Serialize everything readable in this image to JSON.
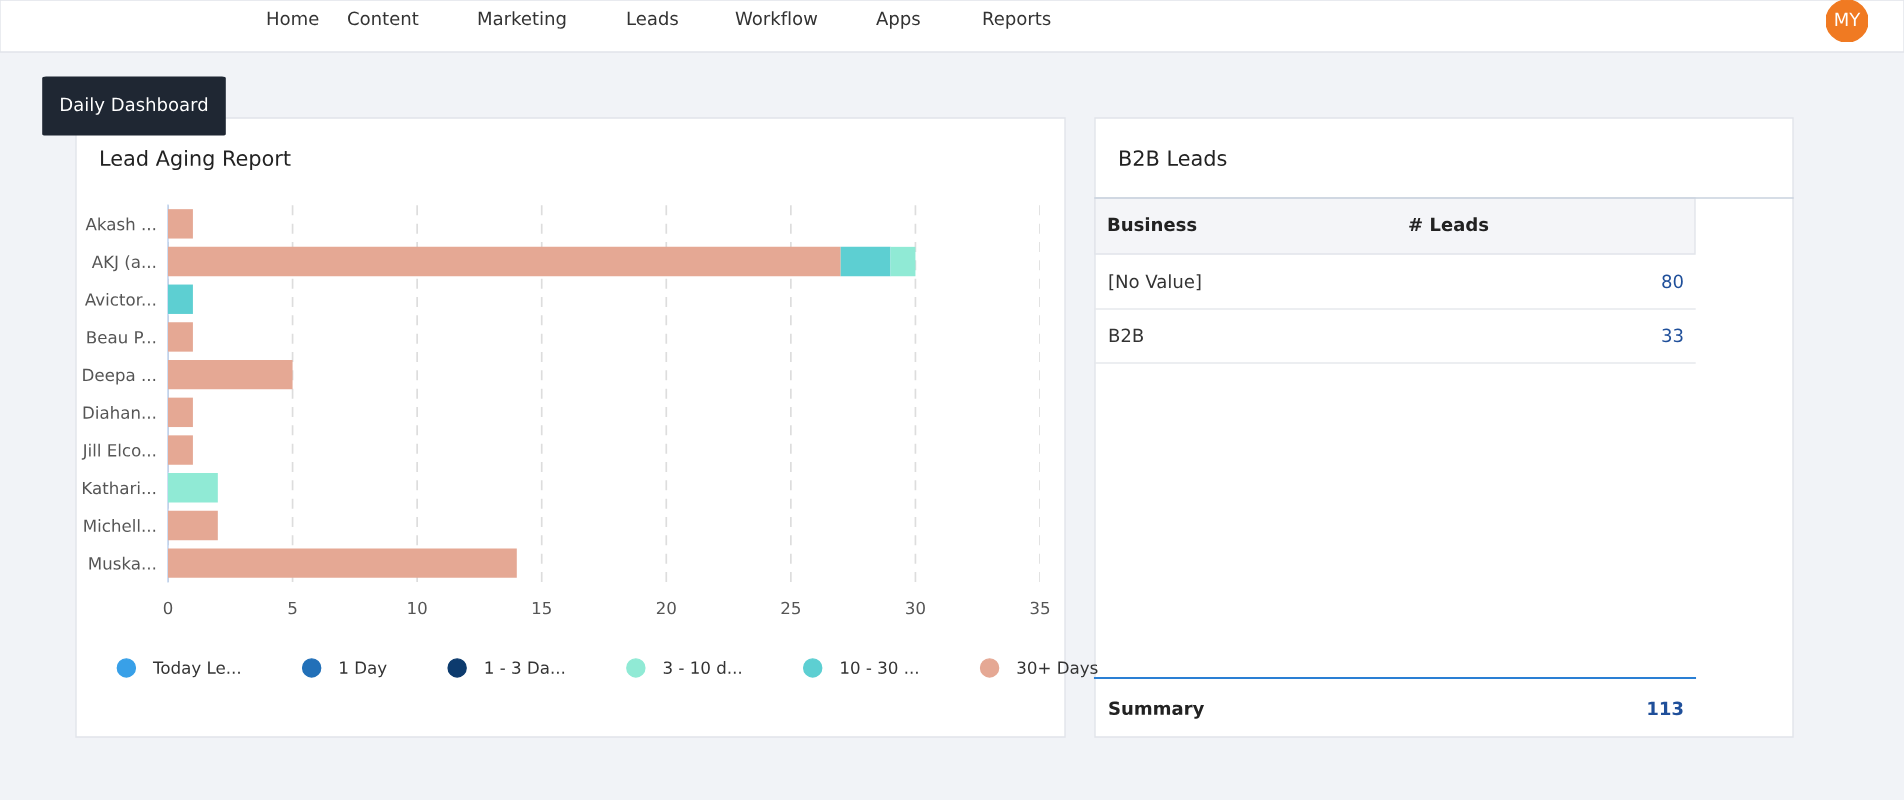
{
  "chart_data": [
    {
      "type": "bar",
      "title": "Lead Aging Report",
      "orientation": "horizontal",
      "stacked": true,
      "categories": [
        "Akash ...",
        "AKJ (a...",
        "Avictor...",
        "Beau P...",
        "Deepa ...",
        "Diahan...",
        "Jill Elco...",
        "Kathari...",
        "Michell...",
        "Muska..."
      ],
      "series": [
        {
          "name": "30+ Days",
          "color": "#e5a894",
          "values": [
            1,
            27,
            0,
            1,
            5,
            1,
            1,
            0,
            2,
            14
          ]
        },
        {
          "name": "10 - 30 ...",
          "color": "#5dcfd2",
          "values": [
            0,
            2,
            1,
            0,
            0,
            0,
            0,
            0,
            0,
            0
          ]
        },
        {
          "name": "3 - 10 d...",
          "color": "#90ead5",
          "values": [
            0,
            1,
            0,
            0,
            0,
            0,
            0,
            2,
            0,
            0
          ]
        },
        {
          "name": "1 - 3 Da...",
          "color": "#0d3b6e",
          "values": [
            0,
            0,
            0,
            0,
            0,
            0,
            0,
            0,
            0,
            0
          ]
        },
        {
          "name": "1 Day",
          "color": "#2270b8",
          "values": [
            0,
            0,
            0,
            0,
            0,
            0,
            0,
            0,
            0,
            0
          ]
        },
        {
          "name": "Today Le...",
          "color": "#38a0e8",
          "values": [
            0,
            0,
            0,
            0,
            0,
            0,
            0,
            0,
            0,
            0
          ]
        }
      ],
      "xlim": [
        0,
        35
      ],
      "xticks": [
        0,
        5,
        10,
        15,
        20,
        25,
        30,
        35
      ],
      "grid": "x",
      "legend": "bottom",
      "marker": "circle"
    },
    {
      "type": "other",
      "title": "B2B Leads",
      "categories": [
        "[No Value]",
        "B2B"
      ],
      "values": [
        80,
        33
      ],
      "data_labels": true,
      "annotations": [
        "Business",
        "# Leads",
        "Summary",
        "113"
      ]
    },
    {
      "type": "other",
      "annotations": [
        "Home",
        "Content",
        "Marketing",
        "Leads",
        "Workflow",
        "Apps",
        "Reports",
        "Daily Dashboard",
        "MY"
      ]
    }
  ]
}
